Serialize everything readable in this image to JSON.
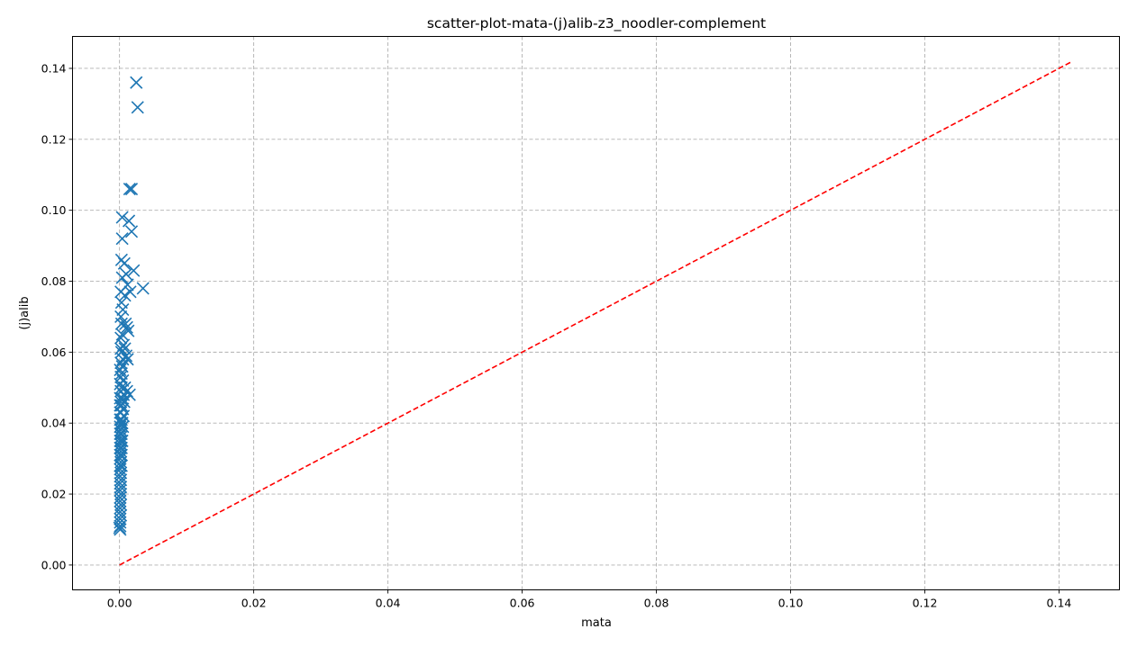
{
  "chart_data": {
    "type": "scatter",
    "title": "scatter-plot-mata-(j)alib-z3_noodler-complement",
    "xlabel": "mata",
    "ylabel": "(j)alib",
    "xlim": [
      -0.007,
      0.149
    ],
    "ylim": [
      -0.007,
      0.149
    ],
    "xticks": [
      0.0,
      0.02,
      0.04,
      0.06,
      0.08,
      0.1,
      0.12,
      0.14
    ],
    "yticks": [
      0.0,
      0.02,
      0.04,
      0.06,
      0.08,
      0.1,
      0.12,
      0.14
    ],
    "xtick_labels": [
      "0.00",
      "0.02",
      "0.04",
      "0.06",
      "0.08",
      "0.10",
      "0.12",
      "0.14"
    ],
    "ytick_labels": [
      "0.00",
      "0.02",
      "0.04",
      "0.06",
      "0.08",
      "0.10",
      "0.12",
      "0.14"
    ],
    "grid": true,
    "marker": "x",
    "colors": {
      "points": "#1f77b4",
      "diagonal": "#ff0000"
    },
    "diagonal": {
      "x": [
        0.0,
        0.142
      ],
      "y": [
        0.0,
        0.142
      ],
      "style": "dashed"
    },
    "points": [
      [
        0.0025,
        0.136
      ],
      [
        0.0027,
        0.129
      ],
      [
        0.0015,
        0.106
      ],
      [
        0.0018,
        0.106
      ],
      [
        0.0004,
        0.098
      ],
      [
        0.0014,
        0.097
      ],
      [
        0.0018,
        0.094
      ],
      [
        0.0004,
        0.092
      ],
      [
        0.0003,
        0.086
      ],
      [
        0.0007,
        0.085
      ],
      [
        0.0021,
        0.083
      ],
      [
        0.001,
        0.082
      ],
      [
        0.0004,
        0.081
      ],
      [
        0.0012,
        0.079
      ],
      [
        0.0035,
        0.078
      ],
      [
        0.0002,
        0.077
      ],
      [
        0.0016,
        0.077
      ],
      [
        0.0008,
        0.076
      ],
      [
        0.0003,
        0.074
      ],
      [
        0.0005,
        0.072
      ],
      [
        0.0002,
        0.07
      ],
      [
        0.0003,
        0.068
      ],
      [
        0.0009,
        0.068
      ],
      [
        0.0011,
        0.067
      ],
      [
        0.0013,
        0.066
      ],
      [
        0.0004,
        0.065
      ],
      [
        0.0002,
        0.064
      ],
      [
        0.0006,
        0.062
      ],
      [
        0.0002,
        0.061
      ],
      [
        0.0008,
        0.061
      ],
      [
        0.0003,
        0.06
      ],
      [
        0.001,
        0.059
      ],
      [
        0.0005,
        0.058
      ],
      [
        0.0012,
        0.058
      ],
      [
        0.0002,
        0.057
      ],
      [
        0.0004,
        0.056
      ],
      [
        0.0001,
        0.055
      ],
      [
        0.0003,
        0.054
      ],
      [
        0.0002,
        0.053
      ],
      [
        0.0005,
        0.052
      ],
      [
        0.0001,
        0.051
      ],
      [
        0.0003,
        0.05
      ],
      [
        0.0008,
        0.05
      ],
      [
        0.0002,
        0.049
      ],
      [
        0.0011,
        0.049
      ],
      [
        0.0015,
        0.048
      ],
      [
        0.0006,
        0.048
      ],
      [
        0.0001,
        0.047
      ],
      [
        0.0004,
        0.047
      ],
      [
        0.0002,
        0.046
      ],
      [
        0.0007,
        0.046
      ],
      [
        0.0001,
        0.045
      ],
      [
        0.0003,
        0.045
      ],
      [
        0.0005,
        0.044
      ],
      [
        0.0001,
        0.043
      ],
      [
        0.0002,
        0.043
      ],
      [
        0.0006,
        0.042
      ],
      [
        0.0001,
        0.041
      ],
      [
        0.0003,
        0.041
      ],
      [
        0.0002,
        0.04
      ],
      [
        0.0004,
        0.04
      ],
      [
        0.0001,
        0.039
      ],
      [
        0.0005,
        0.039
      ],
      [
        0.0002,
        0.038
      ],
      [
        0.0003,
        0.037
      ],
      [
        0.0001,
        0.037
      ],
      [
        0.0002,
        0.036
      ],
      [
        0.0004,
        0.035
      ],
      [
        0.0001,
        0.035
      ],
      [
        0.0002,
        0.034
      ],
      [
        0.0003,
        0.033
      ],
      [
        0.0001,
        0.033
      ],
      [
        0.0002,
        0.032
      ],
      [
        0.0001,
        0.031
      ],
      [
        0.0003,
        0.031
      ],
      [
        0.0001,
        0.03
      ],
      [
        0.0002,
        0.029
      ],
      [
        0.0001,
        0.028
      ],
      [
        0.0003,
        0.028
      ],
      [
        0.0001,
        0.027
      ],
      [
        0.0002,
        0.026
      ],
      [
        0.0001,
        0.025
      ],
      [
        0.0002,
        0.024
      ],
      [
        0.0001,
        0.023
      ],
      [
        0.0002,
        0.022
      ],
      [
        0.0001,
        0.021
      ],
      [
        0.0002,
        0.02
      ],
      [
        0.0001,
        0.019
      ],
      [
        0.0001,
        0.018
      ],
      [
        0.0002,
        0.017
      ],
      [
        0.0001,
        0.016
      ],
      [
        0.0001,
        0.015
      ],
      [
        0.0002,
        0.014
      ],
      [
        0.0001,
        0.013
      ],
      [
        0.0001,
        0.012
      ],
      [
        0.0001,
        0.011
      ],
      [
        0.0,
        0.0105
      ],
      [
        0.0001,
        0.01
      ]
    ]
  }
}
